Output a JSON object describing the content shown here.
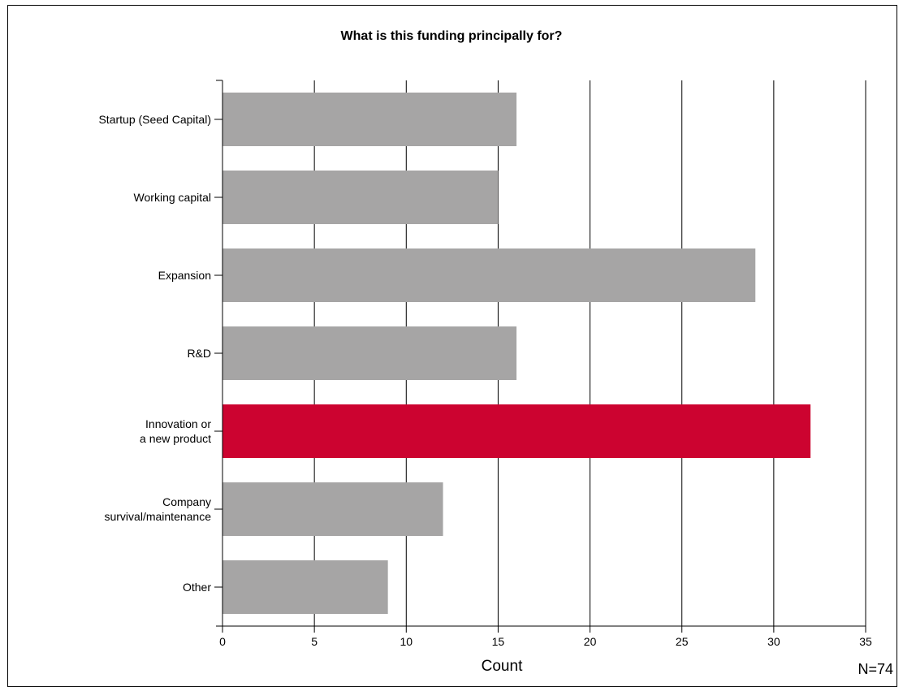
{
  "chart_data": {
    "type": "bar",
    "orientation": "horizontal",
    "title": "What is this funding principally for?",
    "xlabel": "Count",
    "ylabel": "",
    "categories": [
      [
        "Startup (Seed Capital)"
      ],
      [
        "Working capital"
      ],
      [
        "Expansion"
      ],
      [
        "R&D"
      ],
      [
        "Innovation or",
        "a new product"
      ],
      [
        "Company",
        "survival/maintenance"
      ],
      [
        "Other"
      ]
    ],
    "values": [
      16,
      15,
      29,
      16,
      32,
      12,
      9
    ],
    "highlight_index": 4,
    "xlim": [
      0,
      35
    ],
    "xticks": [
      0,
      5,
      10,
      15,
      20,
      25,
      30,
      35
    ],
    "grid": "vertical",
    "note": "N=74",
    "colors": {
      "bar": "#a6a5a5",
      "highlight": "#cc0330",
      "grid": "#000000"
    }
  }
}
